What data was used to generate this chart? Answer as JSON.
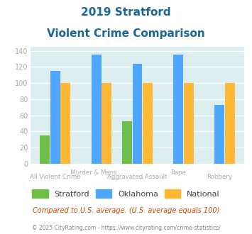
{
  "title_line1": "2019 Stratford",
  "title_line2": "Violent Crime Comparison",
  "stratford": [
    35,
    0,
    53,
    0,
    0
  ],
  "oklahoma": [
    115,
    135,
    124,
    135,
    73
  ],
  "national": [
    100,
    100,
    100,
    100,
    100
  ],
  "bar_colors": {
    "stratford": "#6dbf4a",
    "oklahoma": "#4da6ff",
    "national": "#ffb833"
  },
  "ylim": [
    0,
    145
  ],
  "yticks": [
    0,
    20,
    40,
    60,
    80,
    100,
    120,
    140
  ],
  "bg_color": "#ddeef0",
  "fig_bg": "#ffffff",
  "title_color": "#1a6699",
  "axis_label_color": "#aaaaaa",
  "legend_labels": [
    "Stratford",
    "Oklahoma",
    "National"
  ],
  "footnote1": "Compared to U.S. average. (U.S. average equals 100)",
  "footnote2": "© 2025 CityRating.com - https://www.cityrating.com/crime-statistics/",
  "footnote1_color": "#cc4400",
  "footnote2_color": "#888888"
}
